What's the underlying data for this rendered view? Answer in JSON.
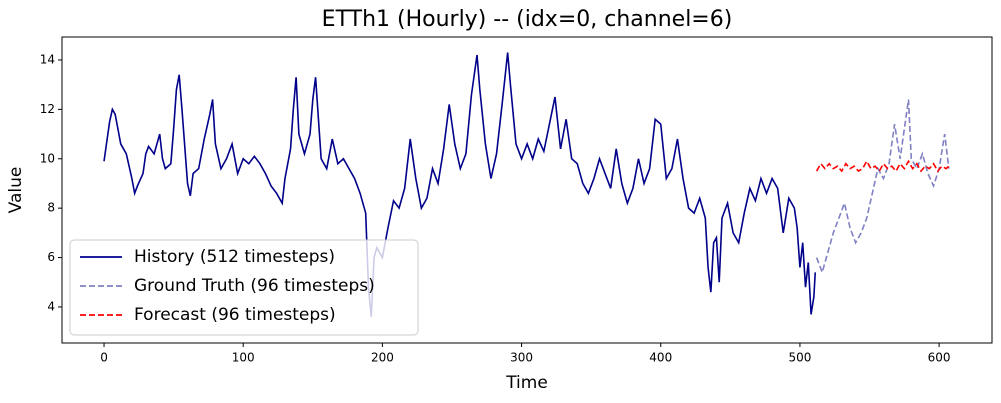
{
  "chart_data": {
    "type": "line",
    "title": "ETTh1 (Hourly) -- (idx=0, channel=6)",
    "x_label": "Time",
    "y_label": "Value",
    "xlim": [
      -30.2,
      638
    ],
    "ylim": [
      2.54,
      14.93
    ],
    "xticks": [
      0,
      100,
      200,
      300,
      400,
      500,
      600
    ],
    "yticks": [
      4,
      6,
      8,
      10,
      12,
      14
    ],
    "legend": "lower left",
    "series": [
      {
        "name": "History (512 timesteps)",
        "color": "#00008b",
        "dash": "solid",
        "x": [
          0,
          4,
          6,
          8,
          12,
          16,
          20,
          22,
          24,
          28,
          30,
          32,
          36,
          40,
          42,
          44,
          48,
          50,
          52,
          54,
          56,
          58,
          60,
          62,
          64,
          68,
          72,
          76,
          78,
          80,
          84,
          88,
          92,
          96,
          100,
          104,
          108,
          112,
          116,
          120,
          124,
          128,
          130,
          134,
          136,
          138,
          140,
          144,
          148,
          150,
          152,
          156,
          160,
          164,
          168,
          172,
          176,
          180,
          184,
          188,
          190,
          192,
          194,
          196,
          200,
          204,
          208,
          212,
          216,
          220,
          224,
          228,
          232,
          236,
          240,
          244,
          248,
          252,
          256,
          260,
          264,
          268,
          270,
          274,
          278,
          282,
          286,
          290,
          292,
          296,
          300,
          304,
          308,
          312,
          316,
          320,
          324,
          328,
          332,
          336,
          340,
          344,
          348,
          352,
          356,
          360,
          364,
          368,
          372,
          376,
          380,
          384,
          388,
          392,
          396,
          400,
          404,
          408,
          412,
          416,
          420,
          424,
          428,
          432,
          434,
          436,
          438,
          440,
          442,
          444,
          448,
          452,
          456,
          460,
          464,
          468,
          472,
          476,
          480,
          484,
          488,
          492,
          496,
          498,
          500,
          502,
          504,
          506,
          508,
          510,
          511
        ],
        "values": [
          9.9,
          11.5,
          12.0,
          11.8,
          10.6,
          10.2,
          9.2,
          8.6,
          8.9,
          9.4,
          10.2,
          10.5,
          10.2,
          11.0,
          10.0,
          9.6,
          9.8,
          11.2,
          12.8,
          13.4,
          12.0,
          10.5,
          9.0,
          8.5,
          9.4,
          9.6,
          10.8,
          11.8,
          12.4,
          10.6,
          9.6,
          10.0,
          10.6,
          9.4,
          10.0,
          9.8,
          10.1,
          9.8,
          9.4,
          8.9,
          8.6,
          8.2,
          9.2,
          10.4,
          12.0,
          13.3,
          11.0,
          10.2,
          11.0,
          12.4,
          13.3,
          10.0,
          9.6,
          10.8,
          9.8,
          10.0,
          9.6,
          9.2,
          8.6,
          7.8,
          4.8,
          3.6,
          6.0,
          6.4,
          6.0,
          7.2,
          8.3,
          8.0,
          8.8,
          10.8,
          9.2,
          8.0,
          8.4,
          9.6,
          9.0,
          10.4,
          12.2,
          10.6,
          9.6,
          10.2,
          12.6,
          14.2,
          12.8,
          10.6,
          9.2,
          10.2,
          12.2,
          14.3,
          13.0,
          10.6,
          10.0,
          10.6,
          10.0,
          10.8,
          10.3,
          11.4,
          12.5,
          10.4,
          11.6,
          10.0,
          9.8,
          9.0,
          8.6,
          9.2,
          10.0,
          9.4,
          8.8,
          10.4,
          9.0,
          8.2,
          8.8,
          10.0,
          9.0,
          9.6,
          11.6,
          11.4,
          9.2,
          9.6,
          10.8,
          9.2,
          8.0,
          7.8,
          8.4,
          7.6,
          5.6,
          4.6,
          6.6,
          6.8,
          5.0,
          7.6,
          8.2,
          7.0,
          6.6,
          7.8,
          8.8,
          8.3,
          9.2,
          8.6,
          9.2,
          8.8,
          7.0,
          8.4,
          8.0,
          7.2,
          5.6,
          6.6,
          4.8,
          5.8,
          3.7,
          4.4,
          5.4
        ]
      },
      {
        "name": "Ground Truth (96 timesteps)",
        "color": "#8080c5",
        "dash": "dashed",
        "x": [
          512,
          516,
          520,
          524,
          528,
          532,
          536,
          540,
          544,
          548,
          552,
          556,
          560,
          564,
          568,
          572,
          574,
          576,
          578,
          580,
          584,
          588,
          592,
          596,
          600,
          604,
          607
        ],
        "values": [
          6.0,
          5.4,
          6.2,
          7.0,
          7.6,
          8.2,
          7.2,
          6.6,
          7.0,
          7.6,
          8.6,
          9.6,
          9.2,
          9.8,
          11.4,
          10.0,
          10.8,
          11.6,
          12.4,
          10.0,
          9.6,
          10.2,
          9.4,
          8.9,
          9.6,
          11.0,
          9.6
        ]
      },
      {
        "name": "Forecast (96 timesteps)",
        "color": "#ff0000",
        "dash": "dashed",
        "x": [
          512,
          515,
          518,
          521,
          524,
          527,
          530,
          533,
          536,
          539,
          542,
          545,
          548,
          551,
          554,
          557,
          560,
          563,
          566,
          569,
          572,
          575,
          578,
          581,
          584,
          587,
          590,
          593,
          596,
          599,
          602,
          605,
          607
        ],
        "values": [
          9.5,
          9.8,
          9.6,
          9.8,
          9.6,
          9.7,
          9.5,
          9.8,
          9.6,
          9.7,
          9.5,
          9.6,
          9.9,
          9.6,
          9.7,
          9.5,
          9.8,
          9.6,
          9.7,
          9.5,
          9.8,
          9.6,
          9.9,
          9.6,
          9.8,
          9.5,
          9.7,
          9.6,
          9.8,
          9.5,
          9.7,
          9.6,
          9.7
        ]
      }
    ]
  }
}
